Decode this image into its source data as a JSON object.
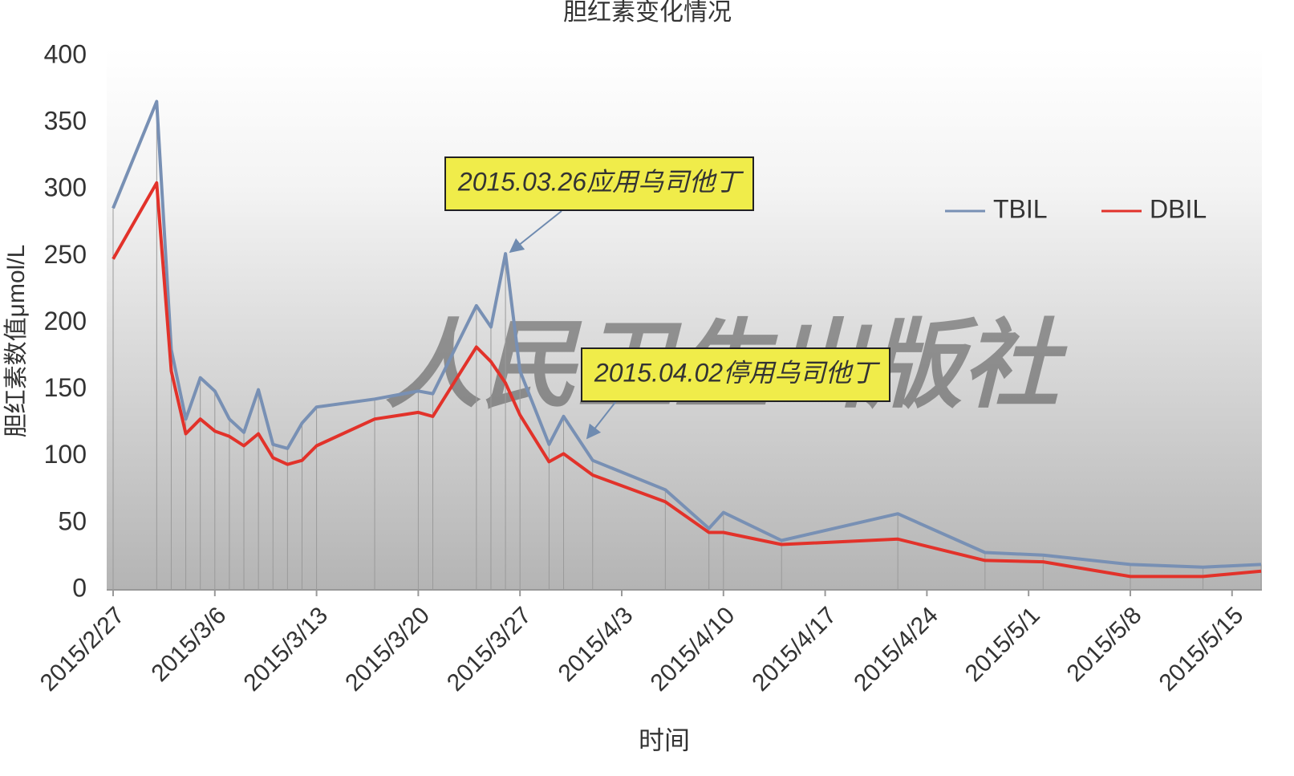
{
  "chart_data": {
    "type": "line",
    "title": "胆红素变化情况",
    "y_label": "胆红素数值μmol/L",
    "x_label": "时间",
    "watermark": "人民卫生出版社",
    "annotations": [
      "2015.03.26应用乌司他丁",
      "2015.04.02停用乌司他丁"
    ],
    "x": [
      "2015/2/27",
      "2015/3/2",
      "2015/3/3",
      "2015/3/4",
      "2015/3/5",
      "2015/3/6",
      "2015/3/7",
      "2015/3/8",
      "2015/3/9",
      "2015/3/10",
      "2015/3/11",
      "2015/3/12",
      "2015/3/13",
      "2015/3/17",
      "2015/3/20",
      "2015/3/21",
      "2015/3/24",
      "2015/3/25",
      "2015/3/26",
      "2015/3/27",
      "2015/3/29",
      "2015/3/30",
      "2015/4/1",
      "2015/4/6",
      "2015/4/9",
      "2015/4/10",
      "2015/4/14",
      "2015/4/22",
      "2015/4/28",
      "2015/5/2",
      "2015/5/8",
      "2015/5/13",
      "2015/5/17"
    ],
    "series": [
      {
        "name": "TBIL",
        "color": "#7890b4",
        "values": [
          286,
          366,
          180,
          128,
          159,
          149,
          128,
          118,
          150,
          109,
          106,
          125,
          137,
          143,
          149,
          147,
          213,
          197,
          252,
          164,
          109,
          130,
          97,
          75,
          46,
          58,
          37,
          57,
          28,
          26,
          19,
          17,
          19
        ]
      },
      {
        "name": "DBIL",
        "color": "#e2322a",
        "values": [
          248,
          305,
          164,
          117,
          128,
          119,
          115,
          108,
          117,
          99,
          94,
          97,
          108,
          128,
          133,
          130,
          182,
          171,
          155,
          131,
          96,
          102,
          86,
          66,
          43,
          43,
          34,
          38,
          22,
          21,
          10,
          10,
          14
        ]
      }
    ],
    "xlim": [
      "2015/2/27",
      "2015/5/17"
    ],
    "xticks": [
      "2015/2/27",
      "2015/3/6",
      "2015/3/13",
      "2015/3/20",
      "2015/3/27",
      "2015/4/3",
      "2015/4/10",
      "2015/4/17",
      "2015/4/24",
      "2015/5/1",
      "2015/5/8",
      "2015/5/15"
    ],
    "ylim": [
      0,
      400
    ],
    "yticks": [
      0,
      50,
      100,
      150,
      200,
      250,
      300,
      350,
      400
    ],
    "drop_lines": true,
    "legend": "top-right"
  }
}
